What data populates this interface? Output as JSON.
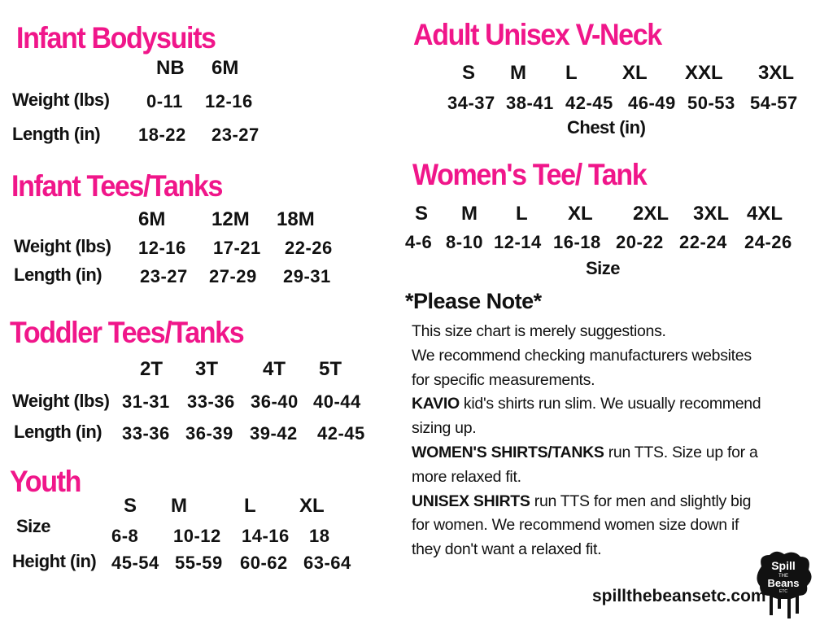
{
  "colors": {
    "heading": "#f0168a",
    "text": "#111111"
  },
  "infant_bodysuits": {
    "title": "Infant Bodysuits",
    "sizes": [
      "NB",
      "6M"
    ],
    "rows": [
      {
        "label": "Weight (lbs)",
        "values": [
          "0-11",
          "12-16"
        ]
      },
      {
        "label": "Length (in)",
        "values": [
          "18-22",
          "23-27"
        ]
      }
    ]
  },
  "infant_tees": {
    "title": "Infant Tees/Tanks",
    "sizes": [
      "6M",
      "12M",
      "18M"
    ],
    "rows": [
      {
        "label": "Weight (lbs)",
        "values": [
          "12-16",
          "17-21",
          "22-26"
        ]
      },
      {
        "label": "Length (in)",
        "values": [
          "23-27",
          "27-29",
          "29-31"
        ]
      }
    ]
  },
  "toddler_tees": {
    "title": "Toddler  Tees/Tanks",
    "sizes": [
      "2T",
      "3T",
      "4T",
      "5T"
    ],
    "rows": [
      {
        "label": "Weight (lbs)",
        "values": [
          "31-31",
          "33-36",
          "36-40",
          "40-44"
        ]
      },
      {
        "label": "Length (in)",
        "values": [
          "33-36",
          "36-39",
          "39-42",
          "42-45"
        ]
      }
    ]
  },
  "youth": {
    "title": "Youth",
    "sizes": [
      "S",
      "M",
      "L",
      "XL"
    ],
    "rows": [
      {
        "label": "Size",
        "values": [
          "6-8",
          "10-12",
          "14-16",
          "18"
        ]
      },
      {
        "label": "Height (in)",
        "values": [
          "45-54",
          "55-59",
          "60-62",
          "63-64"
        ]
      }
    ]
  },
  "adult_unisex": {
    "title": "Adult Unisex V-Neck",
    "sizes": [
      "S",
      "M",
      "L",
      "XL",
      "XXL",
      "3XL"
    ],
    "values": [
      "34-37",
      "38-41",
      "42-45",
      "46-49",
      "50-53",
      "54-57"
    ],
    "unit": "Chest (in)"
  },
  "womens_tee": {
    "title": "Women's Tee/ Tank",
    "sizes": [
      "S",
      "M",
      "L",
      "XL",
      "2XL",
      "3XL",
      "4XL"
    ],
    "values": [
      "4-6",
      "8-10",
      "12-14",
      "16-18",
      "20-22",
      "22-24",
      "24-26"
    ],
    "unit": "Size"
  },
  "note": {
    "title": "*Please Note*",
    "lines": [
      {
        "bold": "",
        "text": "This size chart is merely suggestions."
      },
      {
        "bold": "",
        "text": "We recommend checking manufacturers websites"
      },
      {
        "bold": "",
        "text": "for specific measurements."
      },
      {
        "bold": "KAVIO",
        "text": " kid's shirts run slim. We usually recommend"
      },
      {
        "bold": "",
        "text": "sizing up."
      },
      {
        "bold": "WOMEN'S SHIRTS/TANKS",
        "text": " run TTS. Size up for a"
      },
      {
        "bold": "",
        "text": "more relaxed fit."
      },
      {
        "bold": "UNISEX SHIRTS",
        "text": " run TTS for men and slightly big"
      },
      {
        "bold": "",
        "text": "for women. We recommend women size down if"
      },
      {
        "bold": "",
        "text": "they don't want a relaxed fit."
      }
    ]
  },
  "website": "spillthebeansetc.com",
  "logo": {
    "text": "Spill the Beans etc",
    "icon": "drip-splash-logo"
  }
}
